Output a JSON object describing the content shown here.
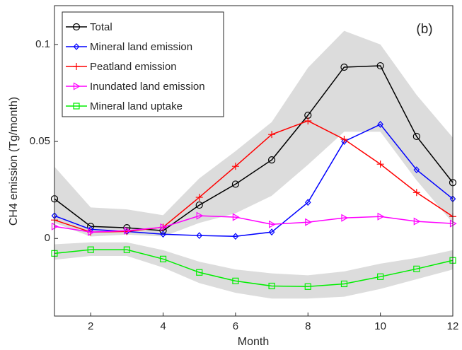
{
  "chart_data": {
    "type": "line",
    "annotation": "(b)",
    "xlabel": "Month",
    "ylabel": "CH4 emission (Tg/month)",
    "x": [
      1,
      2,
      3,
      4,
      5,
      6,
      7,
      8,
      9,
      10,
      11,
      12
    ],
    "xlim": [
      1,
      12
    ],
    "xticks": [
      2,
      4,
      6,
      8,
      10,
      12
    ],
    "ylim": [
      -0.04,
      0.12
    ],
    "yticks": [
      0,
      0.05,
      0.1
    ],
    "legend": "upper left",
    "band_color": "#dcdcdc",
    "series": [
      {
        "name": "Total",
        "color": "#000000",
        "marker": "circle",
        "values": [
          0.0204,
          0.0062,
          0.0055,
          0.004,
          0.0172,
          0.028,
          0.0405,
          0.0635,
          0.0883,
          0.089,
          0.0526,
          0.0288
        ],
        "lower": [
          0.008,
          0.001,
          0.002,
          0.001,
          0.008,
          0.013,
          0.022,
          0.038,
          0.055,
          0.055,
          0.03,
          0.008
        ],
        "upper": [
          0.037,
          0.016,
          0.015,
          0.012,
          0.031,
          0.045,
          0.06,
          0.088,
          0.107,
          0.1,
          0.074,
          0.052
        ]
      },
      {
        "name": "Mineral land emission",
        "color": "#0000ff",
        "marker": "diamond",
        "values": [
          0.0117,
          0.0047,
          0.0036,
          0.0022,
          0.0015,
          0.0011,
          0.0033,
          0.0186,
          0.05,
          0.0588,
          0.0354,
          0.0204
        ]
      },
      {
        "name": "Peatland emission",
        "color": "#ff0000",
        "marker": "plus",
        "values": [
          0.0095,
          0.0033,
          0.0036,
          0.0058,
          0.0212,
          0.0372,
          0.0536,
          0.0606,
          0.0511,
          0.0383,
          0.0237,
          0.0113
        ]
      },
      {
        "name": "Inundated land emission",
        "color": "#ff00ff",
        "marker": "triangle",
        "values": [
          0.0062,
          0.0033,
          0.004,
          0.0058,
          0.0117,
          0.011,
          0.0073,
          0.0084,
          0.0106,
          0.0113,
          0.0088,
          0.0077
        ]
      },
      {
        "name": "Mineral land uptake",
        "color": "#00ee00",
        "marker": "square",
        "values": [
          -0.0077,
          -0.0058,
          -0.0058,
          -0.0106,
          -0.0175,
          -0.0219,
          -0.0245,
          -0.0248,
          -0.0234,
          -0.0197,
          -0.0157,
          -0.0113
        ],
        "lower": [
          -0.011,
          -0.009,
          -0.009,
          -0.015,
          -0.023,
          -0.028,
          -0.031,
          -0.031,
          -0.03,
          -0.026,
          -0.021,
          -0.016
        ],
        "upper": [
          -0.003,
          -0.002,
          -0.002,
          -0.006,
          -0.012,
          -0.016,
          -0.018,
          -0.019,
          -0.017,
          -0.013,
          -0.01,
          -0.006
        ]
      }
    ]
  }
}
